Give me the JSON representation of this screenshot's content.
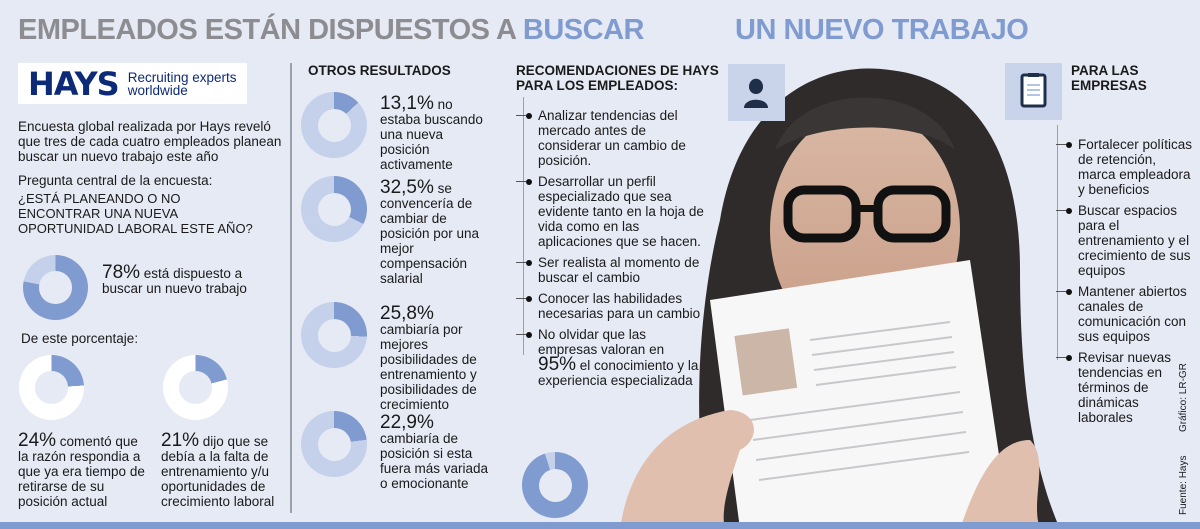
{
  "title": {
    "part_gray": "EMPLEADOS ESTÁN DISPUESTOS A",
    "part_blue1": "BUSCAR",
    "part_blue2": "UN NUEVO TRABAJO"
  },
  "colors": {
    "accent": "#7f9bd0",
    "light": "#c5d1ea",
    "gray_title": "#8c8c91",
    "background": "#e6eaf5",
    "brand": "#0d2a78"
  },
  "logo": {
    "brand": "HAYS",
    "tagline1": "Recruiting experts",
    "tagline2": "worldwide"
  },
  "intro": "Encuesta global realizada por Hays reveló que tres de cada cuatro empleados planean buscar un nuevo trabajo este año",
  "question": {
    "label": "Pregunta central de la encuesta:",
    "text": "¿ESTÁ PLANEANDO O NO ENCONTRAR UNA NUEVA OPORTUNIDAD LABORAL ESTE AÑO?"
  },
  "main_stat": {
    "value": 78,
    "pct": "78%",
    "text": "está dispuesto a buscar un nuevo trabajo"
  },
  "sub_label": "De este porcentaje:",
  "sub_stats": [
    {
      "value": 24,
      "pct": "24%",
      "text": "comentó que la razón respondia a que ya era tiempo de retirarse de su posición actual"
    },
    {
      "value": 21,
      "pct": "21%",
      "text": "dijo que se debía a la falta de entrenamiento y/u oportunidades de crecimiento laboral"
    }
  ],
  "otros": {
    "heading": "OTROS RESULTADOS",
    "items": [
      {
        "value": 13.1,
        "pct": "13,1%",
        "text": "no estaba buscando una nueva posición activamente"
      },
      {
        "value": 32.5,
        "pct": "32,5%",
        "text": "se convencería de cambiar de posición por una mejor compensación salarial"
      },
      {
        "value": 25.8,
        "pct": "25,8%",
        "text": "cambiaría por mejores posibilidades de entrenamiento y posibilidades de crecimiento"
      },
      {
        "value": 22.9,
        "pct": "22,9%",
        "text": "cambiaría de posición si esta fuera más variada o emocionante"
      }
    ]
  },
  "empleados": {
    "heading1": "RECOMENDACIONES DE HAYS",
    "heading2": "PARA LOS EMPLEADOS:",
    "icon": "person-icon",
    "items": [
      "Analizar tendencias del mercado antes de considerar un cambio de posición.",
      "Desarrollar un perfil especializado que sea evidente tanto en la hoja de vida como en las aplicaciones que se hacen.",
      "Ser realista al momento de buscar el cambio",
      "Conocer las habilidades necesarias para un cambio"
    ],
    "last_item": {
      "pre": "No olvidar que las empresas valoran",
      "mid": "en",
      "pct": "95%",
      "post": "el conocimiento y la experiencia especializada",
      "value": 95
    }
  },
  "empresas": {
    "heading1": "PARA LAS",
    "heading2": "EMPRESAS",
    "icon": "clipboard-icon",
    "items": [
      "Fortalecer políticas de retención, marca empleadora y beneficios",
      "Buscar espacios para el entrenamiento y el crecimiento de sus equipos",
      "Mantener abiertos canales de comunicación con sus equipos",
      "Revisar nuevas tendencias en términos de dinámicas laborales"
    ]
  },
  "credits": {
    "graphic": "Gráfico: LR-GR",
    "source": "Fuente: Hays"
  }
}
